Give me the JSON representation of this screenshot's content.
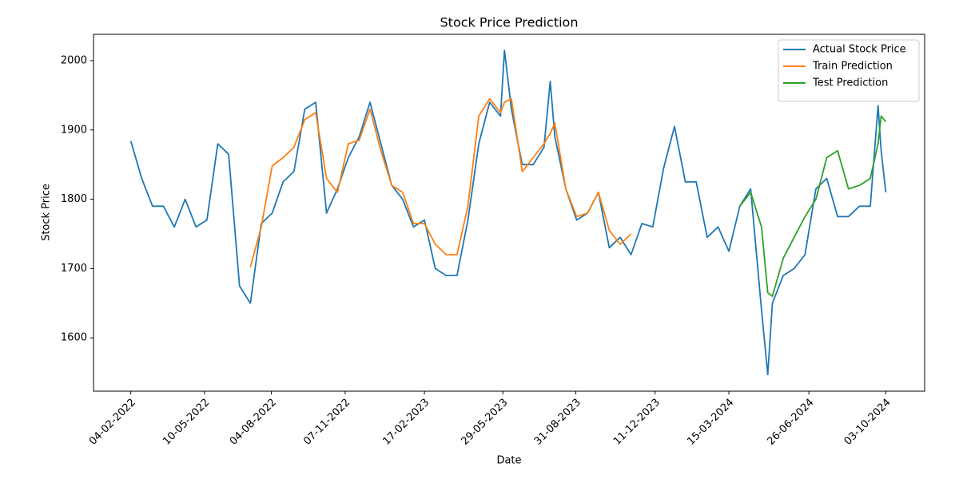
{
  "chart_data": {
    "type": "line",
    "title": "Stock Price Prediction",
    "x_label": "Date",
    "y_label": "Stock Price",
    "x": [
      "2022-02-04",
      "2022-02-18",
      "2022-03-04",
      "2022-03-18",
      "2022-04-01",
      "2022-04-15",
      "2022-04-29",
      "2022-05-13",
      "2022-05-27",
      "2022-06-10",
      "2022-06-24",
      "2022-07-08",
      "2022-07-22",
      "2022-08-05",
      "2022-08-19",
      "2022-09-02",
      "2022-09-16",
      "2022-09-30",
      "2022-10-14",
      "2022-10-28",
      "2022-11-11",
      "2022-11-25",
      "2022-12-09",
      "2022-12-23",
      "2023-01-06",
      "2023-01-20",
      "2023-02-03",
      "2023-02-17",
      "2023-03-03",
      "2023-03-17",
      "2023-03-31",
      "2023-04-14",
      "2023-04-28",
      "2023-05-12",
      "2023-05-26",
      "2023-05-31",
      "2023-06-09",
      "2023-06-23",
      "2023-07-07",
      "2023-07-21",
      "2023-07-29",
      "2023-08-04",
      "2023-08-18",
      "2023-09-01",
      "2023-09-15",
      "2023-09-29",
      "2023-10-13",
      "2023-10-27",
      "2023-11-10",
      "2023-11-24",
      "2023-12-08",
      "2023-12-22",
      "2024-01-05",
      "2024-01-19",
      "2024-02-02",
      "2024-02-16",
      "2024-03-01",
      "2024-03-15",
      "2024-03-29",
      "2024-04-12",
      "2024-04-26",
      "2024-05-04",
      "2024-05-10",
      "2024-05-24",
      "2024-06-07",
      "2024-06-21",
      "2024-07-05",
      "2024-07-19",
      "2024-08-02",
      "2024-08-16",
      "2024-08-30",
      "2024-09-13",
      "2024-09-23",
      "2024-09-27",
      "2024-10-03"
    ],
    "series": [
      {
        "name": "Actual Stock Price",
        "color": "#1f77b4",
        "values": [
          1884,
          1830,
          1790,
          1790,
          1760,
          1800,
          1760,
          1770,
          1880,
          1865,
          1675,
          1650,
          1765,
          1780,
          1825,
          1840,
          1930,
          1940,
          1780,
          1815,
          1860,
          1890,
          1940,
          1880,
          1820,
          1800,
          1760,
          1770,
          1700,
          1690,
          1690,
          1770,
          1880,
          1940,
          1920,
          2015,
          1930,
          1850,
          1850,
          1875,
          1970,
          1890,
          1815,
          1770,
          1780,
          1810,
          1730,
          1745,
          1720,
          1765,
          1760,
          1845,
          1905,
          1825,
          1825,
          1745,
          1760,
          1725,
          1790,
          1815,
          1640,
          1547,
          1650,
          1690,
          1700,
          1720,
          1815,
          1830,
          1775,
          1775,
          1790,
          1790,
          1935,
          1870,
          1810
        ]
      },
      {
        "name": "Train Prediction",
        "color": "#ff7f0e",
        "values": [
          null,
          null,
          null,
          null,
          null,
          null,
          null,
          null,
          null,
          null,
          null,
          1702,
          1760,
          1848,
          1860,
          1875,
          1915,
          1925,
          1830,
          1810,
          1880,
          1885,
          1930,
          1870,
          1820,
          1810,
          1765,
          1765,
          1735,
          1720,
          1720,
          1790,
          1920,
          1945,
          1925,
          1940,
          1945,
          1840,
          1860,
          1880,
          1895,
          1910,
          1815,
          1775,
          1780,
          1810,
          1755,
          1735,
          1750,
          null,
          null,
          null,
          null,
          null,
          null,
          null,
          null,
          null,
          null,
          null,
          null,
          null,
          null,
          null,
          null,
          null,
          null,
          null,
          null,
          null,
          null,
          null,
          null,
          null,
          null
        ]
      },
      {
        "name": "Test Prediction",
        "color": "#2ca02c",
        "values": [
          null,
          null,
          null,
          null,
          null,
          null,
          null,
          null,
          null,
          null,
          null,
          null,
          null,
          null,
          null,
          null,
          null,
          null,
          null,
          null,
          null,
          null,
          null,
          null,
          null,
          null,
          null,
          null,
          null,
          null,
          null,
          null,
          null,
          null,
          null,
          null,
          null,
          null,
          null,
          null,
          null,
          null,
          null,
          null,
          null,
          null,
          null,
          null,
          null,
          null,
          null,
          null,
          null,
          null,
          null,
          null,
          null,
          null,
          1790,
          1810,
          1760,
          1665,
          1660,
          1715,
          1745,
          1775,
          1800,
          1860,
          1870,
          1815,
          1820,
          1830,
          1880,
          1920,
          1912
        ]
      }
    ],
    "xlim": [
      "2021-12-18",
      "2024-11-22"
    ],
    "xticks": [
      {
        "value": "2022-02-04",
        "label": "04-02-2022"
      },
      {
        "value": "2022-05-10",
        "label": "10-05-2022"
      },
      {
        "value": "2022-08-04",
        "label": "04-08-2022"
      },
      {
        "value": "2022-11-07",
        "label": "07-11-2022"
      },
      {
        "value": "2023-02-17",
        "label": "17-02-2023"
      },
      {
        "value": "2023-05-29",
        "label": "29-05-2023"
      },
      {
        "value": "2023-08-31",
        "label": "31-08-2023"
      },
      {
        "value": "2023-12-11",
        "label": "11-12-2023"
      },
      {
        "value": "2024-03-15",
        "label": "15-03-2024"
      },
      {
        "value": "2024-06-26",
        "label": "26-06-2024"
      },
      {
        "value": "2024-10-03",
        "label": "03-10-2024"
      }
    ],
    "ylim": [
      1523,
      2038
    ],
    "yticks": [
      1600,
      1700,
      1800,
      1900,
      2000
    ],
    "grid": false,
    "legend": "upper right"
  }
}
